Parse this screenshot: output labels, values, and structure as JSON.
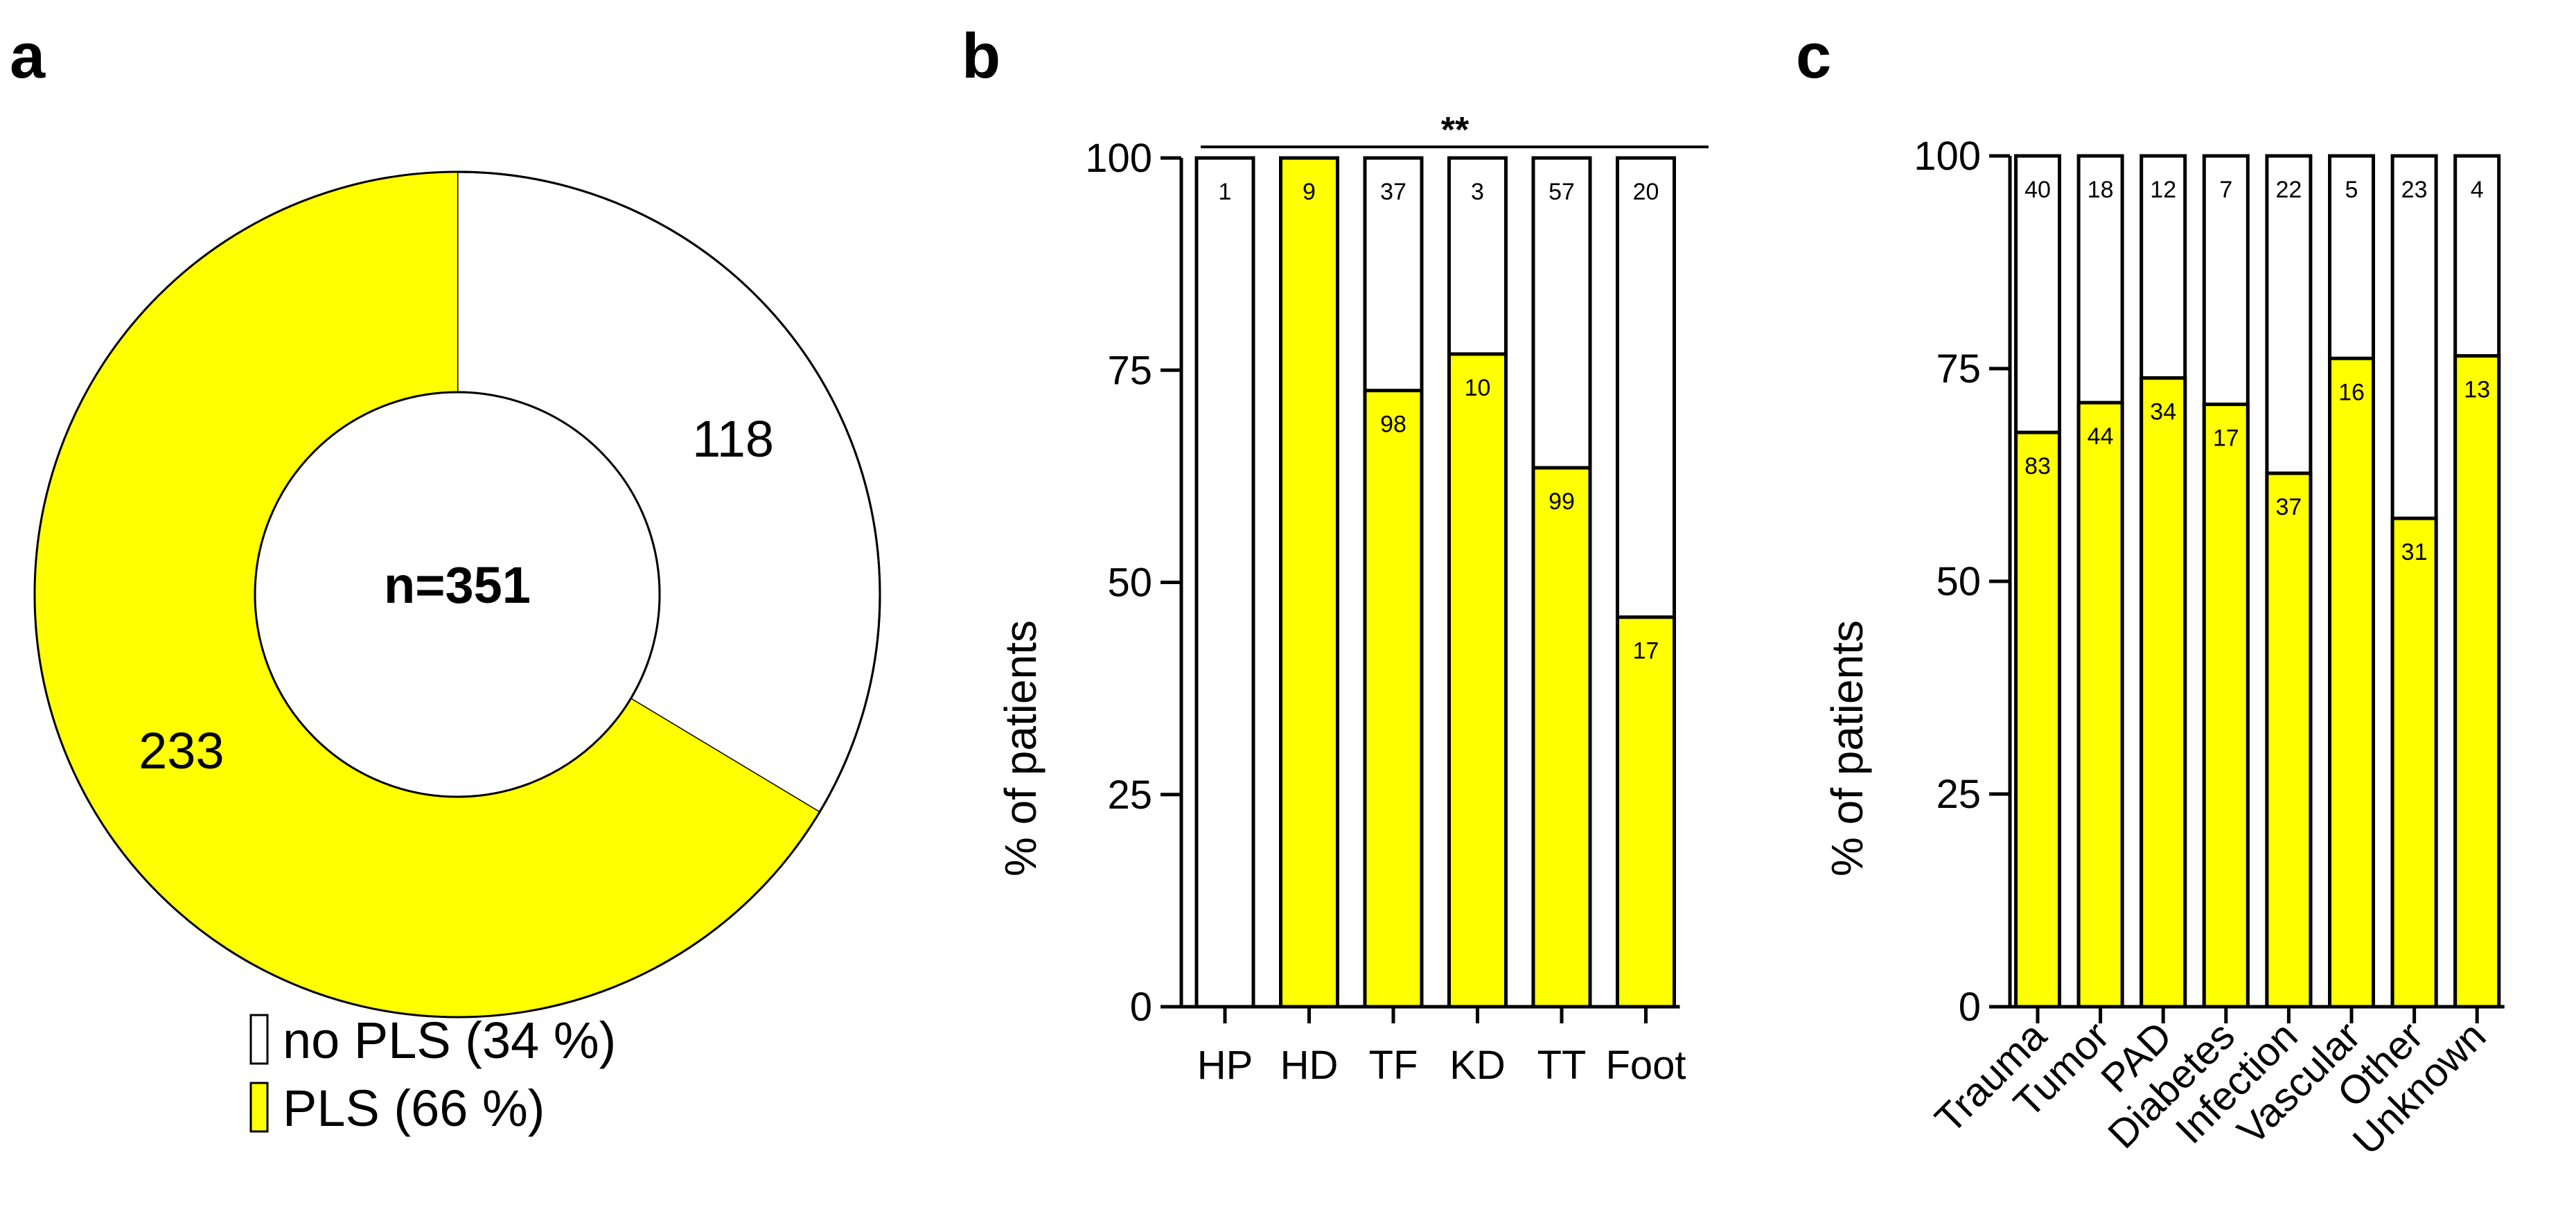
{
  "colors": {
    "pls": "#ffff00",
    "no_pls": "#ffffff",
    "outline": "#000000"
  },
  "panels": {
    "a": "a",
    "b": "b",
    "c": "c"
  },
  "chart_data": [
    {
      "panel": "a",
      "type": "pie",
      "subtype": "donut",
      "center_label": "n=351",
      "slices": [
        {
          "name": "no PLS",
          "count": 118,
          "count_label": "118",
          "percent": 34,
          "legend": "no PLS (34 %)",
          "color": "#ffffff"
        },
        {
          "name": "PLS",
          "count": 233,
          "count_label": "233",
          "percent": 66,
          "legend": "PLS (66 %)",
          "color": "#ffff00"
        }
      ]
    },
    {
      "panel": "b",
      "type": "bar",
      "stacked": true,
      "ylabel": "% of patients",
      "ylim": [
        0,
        100
      ],
      "yticks": [
        "0",
        "25",
        "50",
        "75",
        "100"
      ],
      "significance": "**",
      "categories": [
        "HP",
        "HD",
        "TF",
        "KD",
        "TT",
        "Foot"
      ],
      "series": [
        {
          "name": "PLS",
          "color": "#ffff00",
          "percent": [
            0,
            100,
            72.6,
            76.9,
            63.5,
            45.9
          ],
          "counts": [
            "",
            "9",
            "98",
            "10",
            "99",
            "17"
          ]
        },
        {
          "name": "no PLS",
          "color": "#ffffff",
          "percent": [
            100,
            0,
            27.4,
            23.1,
            36.5,
            54.1
          ],
          "counts": [
            "1",
            "",
            "37",
            "3",
            "57",
            "20"
          ]
        }
      ]
    },
    {
      "panel": "c",
      "type": "bar",
      "stacked": true,
      "ylabel": "% of patients",
      "ylim": [
        0,
        100
      ],
      "yticks": [
        "0",
        "25",
        "50",
        "75",
        "100"
      ],
      "categories": [
        "Trauma",
        "Tumor",
        "PAD",
        "Diabetes",
        "Infection",
        "Vascular",
        "Other",
        "Unknown"
      ],
      "series": [
        {
          "name": "PLS",
          "color": "#ffff00",
          "percent": [
            67.5,
            71.0,
            73.9,
            70.8,
            62.7,
            76.2,
            57.4,
            76.5
          ],
          "counts": [
            "83",
            "44",
            "34",
            "17",
            "37",
            "16",
            "31",
            "13"
          ]
        },
        {
          "name": "no PLS",
          "color": "#ffffff",
          "percent": [
            32.5,
            29.0,
            26.1,
            29.2,
            37.3,
            23.8,
            42.6,
            23.5
          ],
          "counts": [
            "40",
            "18",
            "12",
            "7",
            "22",
            "5",
            "23",
            "4"
          ]
        }
      ]
    }
  ]
}
